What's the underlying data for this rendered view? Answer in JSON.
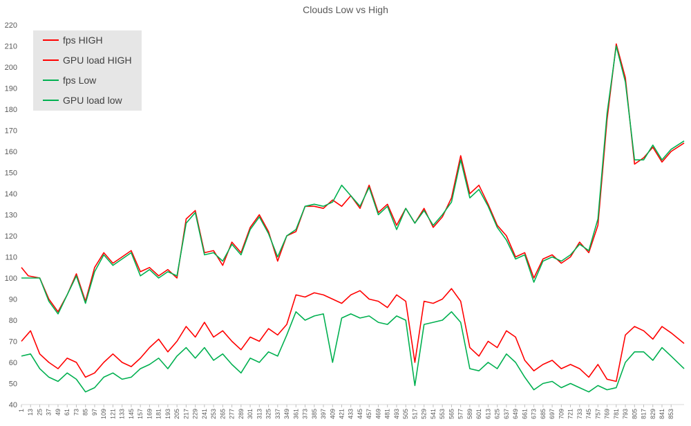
{
  "chart_data": {
    "type": "line",
    "title": "Clouds Low vs High",
    "xlabel": "",
    "ylabel": "",
    "ylim": [
      40,
      220
    ],
    "yticks": [
      40,
      50,
      60,
      70,
      80,
      90,
      100,
      110,
      120,
      130,
      140,
      150,
      160,
      170,
      180,
      190,
      200,
      210,
      220
    ],
    "xlim": [
      1,
      870
    ],
    "xticks": [
      1,
      13,
      25,
      37,
      49,
      61,
      73,
      85,
      97,
      109,
      121,
      133,
      145,
      157,
      169,
      181,
      193,
      205,
      217,
      229,
      241,
      253,
      265,
      277,
      289,
      301,
      313,
      325,
      337,
      349,
      361,
      373,
      385,
      397,
      409,
      421,
      433,
      445,
      457,
      469,
      481,
      493,
      505,
      517,
      529,
      541,
      553,
      565,
      577,
      589,
      601,
      613,
      625,
      637,
      649,
      661,
      673,
      685,
      697,
      709,
      721,
      733,
      745,
      757,
      769,
      781,
      793,
      805,
      817,
      829,
      841,
      853
    ],
    "grid": false,
    "legend_position": "top-left",
    "series": [
      {
        "name": "fps HIGH",
        "color": "#ff0000",
        "x": [
          1,
          10,
          25,
          37,
          49,
          61,
          73,
          85,
          97,
          109,
          121,
          133,
          145,
          157,
          169,
          181,
          193,
          205,
          217,
          229,
          241,
          253,
          265,
          277,
          289,
          301,
          313,
          325,
          337,
          349,
          361,
          373,
          385,
          397,
          409,
          421,
          433,
          445,
          457,
          469,
          481,
          493,
          505,
          517,
          529,
          541,
          553,
          565,
          577,
          589,
          601,
          613,
          625,
          637,
          649,
          661,
          673,
          685,
          697,
          709,
          721,
          733,
          745,
          757,
          769,
          781,
          793,
          805,
          817,
          829,
          841,
          853,
          870
        ],
        "y": [
          105,
          101,
          100,
          90,
          84,
          92,
          102,
          89,
          105,
          112,
          107,
          110,
          113,
          103,
          105,
          101,
          104,
          100,
          128,
          132,
          112,
          113,
          106,
          117,
          112,
          124,
          130,
          122,
          108,
          120,
          122,
          134,
          134,
          133,
          137,
          134,
          139,
          133,
          144,
          131,
          135,
          125,
          133,
          126,
          133,
          124,
          129,
          138,
          158,
          140,
          144,
          135,
          125,
          120,
          110,
          112,
          100,
          109,
          111,
          107,
          110,
          117,
          112,
          125,
          175,
          211,
          195,
          154,
          157,
          162,
          155,
          160,
          164
        ]
      },
      {
        "name": "GPU load HIGH",
        "color": "#ff0000",
        "x": [
          1,
          13,
          25,
          37,
          49,
          61,
          73,
          85,
          97,
          109,
          121,
          133,
          145,
          157,
          169,
          181,
          193,
          205,
          217,
          229,
          241,
          253,
          265,
          277,
          289,
          301,
          313,
          325,
          337,
          349,
          361,
          373,
          385,
          397,
          409,
          421,
          433,
          445,
          457,
          469,
          481,
          493,
          505,
          517,
          529,
          541,
          553,
          565,
          577,
          589,
          601,
          613,
          625,
          637,
          649,
          661,
          673,
          685,
          697,
          709,
          721,
          733,
          745,
          757,
          769,
          781,
          793,
          805,
          817,
          829,
          841,
          853,
          870
        ],
        "y": [
          70,
          75,
          64,
          60,
          57,
          62,
          60,
          53,
          55,
          60,
          64,
          60,
          58,
          62,
          67,
          71,
          65,
          70,
          77,
          72,
          79,
          72,
          75,
          70,
          66,
          72,
          70,
          76,
          73,
          78,
          92,
          91,
          93,
          92,
          90,
          88,
          92,
          94,
          90,
          89,
          86,
          92,
          89,
          60,
          89,
          88,
          90,
          95,
          89,
          67,
          63,
          70,
          67,
          75,
          72,
          61,
          56,
          59,
          61,
          57,
          59,
          57,
          53,
          59,
          52,
          51,
          73,
          77,
          75,
          71,
          77,
          74,
          69
        ]
      },
      {
        "name": "fps Low",
        "color": "#00b050",
        "x": [
          1,
          10,
          25,
          37,
          49,
          61,
          73,
          85,
          97,
          109,
          121,
          133,
          145,
          157,
          169,
          181,
          193,
          205,
          217,
          229,
          241,
          253,
          265,
          277,
          289,
          301,
          313,
          325,
          337,
          349,
          361,
          373,
          385,
          397,
          409,
          421,
          433,
          445,
          457,
          469,
          481,
          493,
          505,
          517,
          529,
          541,
          553,
          565,
          577,
          589,
          601,
          613,
          625,
          637,
          649,
          661,
          673,
          685,
          697,
          709,
          721,
          733,
          745,
          757,
          769,
          781,
          793,
          805,
          817,
          829,
          841,
          853,
          870
        ],
        "y": [
          100,
          100,
          100,
          89,
          83,
          92,
          101,
          88,
          103,
          111,
          106,
          109,
          112,
          101,
          104,
          100,
          103,
          101,
          126,
          131,
          111,
          112,
          108,
          116,
          111,
          123,
          129,
          121,
          110,
          120,
          123,
          134,
          135,
          134,
          136,
          144,
          139,
          134,
          143,
          130,
          134,
          123,
          133,
          126,
          132,
          125,
          130,
          136,
          156,
          138,
          142,
          134,
          124,
          118,
          109,
          111,
          98,
          108,
          110,
          108,
          111,
          116,
          113,
          128,
          178,
          210,
          193,
          156,
          156,
          163,
          156,
          161,
          165
        ]
      },
      {
        "name": "GPU load low",
        "color": "#00b050",
        "x": [
          1,
          13,
          25,
          37,
          49,
          61,
          73,
          85,
          97,
          109,
          121,
          133,
          145,
          157,
          169,
          181,
          193,
          205,
          217,
          229,
          241,
          253,
          265,
          277,
          289,
          301,
          313,
          325,
          337,
          349,
          361,
          373,
          385,
          397,
          409,
          421,
          433,
          445,
          457,
          469,
          481,
          493,
          505,
          517,
          529,
          541,
          553,
          565,
          577,
          589,
          601,
          613,
          625,
          637,
          649,
          661,
          673,
          685,
          697,
          709,
          721,
          733,
          745,
          757,
          769,
          781,
          793,
          805,
          817,
          829,
          841,
          853,
          870
        ],
        "y": [
          63,
          64,
          57,
          53,
          51,
          55,
          52,
          46,
          48,
          53,
          55,
          52,
          53,
          57,
          59,
          62,
          57,
          63,
          67,
          62,
          67,
          61,
          64,
          59,
          55,
          62,
          60,
          65,
          63,
          73,
          84,
          80,
          82,
          83,
          60,
          81,
          83,
          81,
          82,
          79,
          78,
          82,
          80,
          49,
          78,
          79,
          80,
          84,
          79,
          57,
          56,
          60,
          57,
          64,
          60,
          53,
          47,
          50,
          51,
          48,
          50,
          48,
          46,
          49,
          47,
          48,
          60,
          65,
          65,
          61,
          67,
          63,
          57
        ]
      }
    ]
  }
}
